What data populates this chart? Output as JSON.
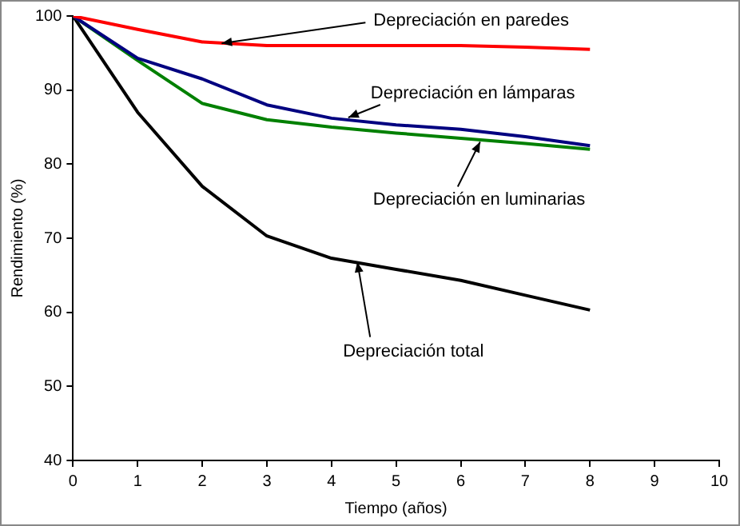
{
  "chart_data": {
    "type": "line",
    "xlabel": "Tiempo (años)",
    "ylabel": "Rendimiento (%)",
    "x": [
      0,
      1,
      2,
      3,
      4,
      5,
      6,
      7,
      8
    ],
    "xlim": [
      0,
      10
    ],
    "xticks": [
      0,
      1,
      2,
      3,
      4,
      5,
      6,
      7,
      8,
      9,
      10
    ],
    "ylim": [
      40,
      100
    ],
    "yticks": [
      40,
      50,
      60,
      70,
      80,
      90,
      100
    ],
    "grid": false,
    "legend": false,
    "marker": "none",
    "line_style": "solid",
    "series": [
      {
        "color": "#ff0000",
        "values": [
          100,
          98.2,
          96.5,
          96,
          96,
          96,
          96,
          95.8,
          95.5
        ]
      },
      {
        "color": "#000080",
        "values": [
          100,
          94.3,
          91.5,
          88,
          86.2,
          85.3,
          84.7,
          83.7,
          82.5
        ]
      },
      {
        "color": "#008000",
        "values": [
          100,
          94,
          88.2,
          86,
          85,
          84.2,
          83.5,
          82.8,
          82
        ]
      },
      {
        "color": "#000000",
        "values": [
          100,
          87,
          77,
          70.3,
          67.3,
          65.8,
          64.3,
          62.3,
          60.3
        ]
      }
    ],
    "annotations": [
      {
        "text": "Depreciación en paredes",
        "x": 2.3,
        "y": 96.3
      },
      {
        "text": "Depreciación en lámparas",
        "x": 4.26,
        "y": 86.3
      },
      {
        "text": "Depreciación en luminarias",
        "x": 6.3,
        "y": 83
      },
      {
        "text": "Depreciación total",
        "x": 4.4,
        "y": 66.8
      }
    ]
  }
}
